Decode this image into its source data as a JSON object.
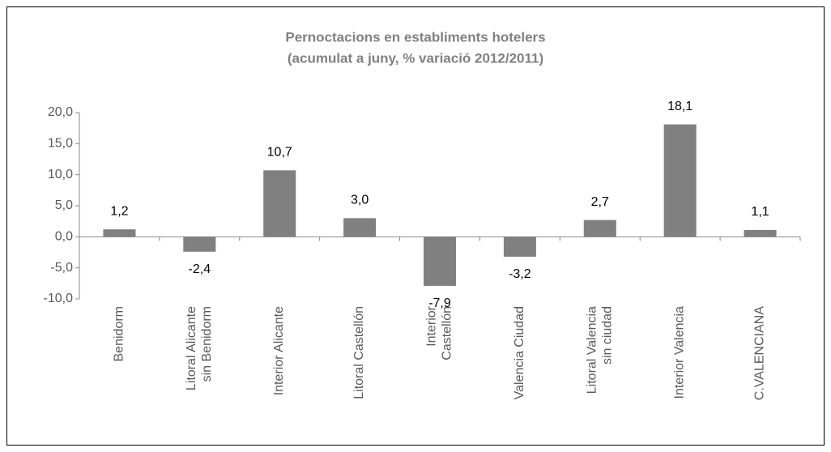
{
  "chart_data": {
    "type": "bar",
    "title": "Pernoctacions en establiments hotelers",
    "subtitle": "(acumulat a juny, % variació 2012/2011)",
    "categories": [
      "Benidorm",
      "Litoral Alicante\nsin Benidorm",
      "Interior Alicante",
      "Litoral Castellón",
      "Interior\nCastellón",
      "Valencia Ciudad",
      "Litoral Valencia\nsin ciudad",
      "Interior Valencia",
      "C.VALENCIANA"
    ],
    "values": [
      1.2,
      -2.4,
      10.7,
      3.0,
      -7.9,
      -3.2,
      2.7,
      18.1,
      1.1
    ],
    "value_labels": [
      "1,2",
      "-2,4",
      "10,7",
      "3,0",
      "-7,9",
      "-3,2",
      "2,7",
      "18,1",
      "1,1"
    ],
    "color": "#808080",
    "ylim": [
      -10,
      20
    ],
    "yticks": [
      {
        "value": -10,
        "label": "-10,0"
      },
      {
        "value": -5,
        "label": "-5,0"
      },
      {
        "value": 0,
        "label": "0,0"
      },
      {
        "value": 5,
        "label": "5,0"
      },
      {
        "value": 10,
        "label": "10,0"
      },
      {
        "value": 15,
        "label": "15,0"
      },
      {
        "value": 20,
        "label": "20,0"
      }
    ],
    "grid": false
  }
}
